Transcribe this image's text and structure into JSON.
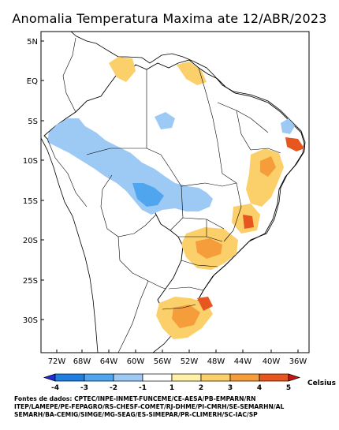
{
  "title": "Anomalia Temperatura Maxima ate 12/ABR/2023",
  "map": {
    "lat_labels": [
      "5N",
      "EQ",
      "5S",
      "10S",
      "15S",
      "20S",
      "25S",
      "30S"
    ],
    "lon_labels": [
      "72W",
      "68W",
      "64W",
      "60W",
      "56W",
      "52W",
      "48W",
      "44W",
      "40W",
      "36W"
    ],
    "region": "Brasil"
  },
  "colorbar": {
    "unit": "Celsius",
    "tick_labels": [
      "-4",
      "-3",
      "-2",
      "-1",
      "1",
      "2",
      "3",
      "4",
      "5"
    ],
    "colors": [
      "#1f2fd8",
      "#1f7fe0",
      "#4fa6ef",
      "#9ccaf5",
      "#ffffff",
      "#fff2a6",
      "#fbcf6a",
      "#f59d3a",
      "#e8561f",
      "#c81414"
    ]
  },
  "sources": [
    "Fontes de dados: CPTEC/INPE-INMET-FUNCEME/CE-AESA/PB-EMPARN/RN",
    "ITEP/LAMEPE/PE-FEPAGRO/RS-CHESF-COMET/RJ-DHME/PI-CMRH/SE-SEMARHN/AL",
    "SEMARH/BA-CEMIG/SIMGE/MG-SEAG/ES-SIMEPAR/PR-CLIMERH/SC-IAC/SP"
  ]
}
